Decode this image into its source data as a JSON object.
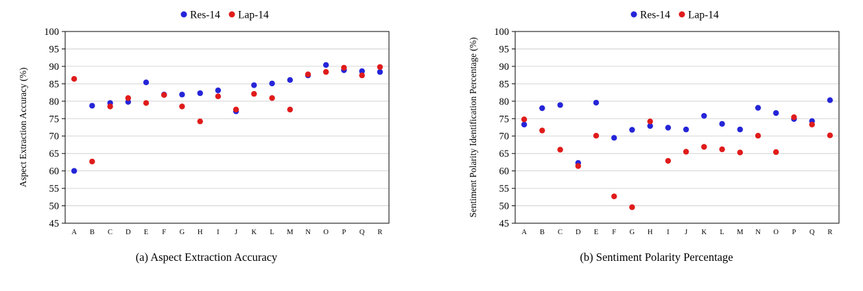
{
  "figure": {
    "captions": [
      "(a) Aspect Extraction Accuracy",
      "(b) Sentiment Polarity Percentage"
    ]
  },
  "chart_data": [
    {
      "type": "scatter",
      "title": "",
      "xlabel": "",
      "ylabel": "Aspect Extraction Accuracy (%)",
      "ylim": [
        45,
        100
      ],
      "ytick_step": 5,
      "grid": true,
      "legend_position": "top-center",
      "categories": [
        "A",
        "B",
        "C",
        "D",
        "E",
        "F",
        "G",
        "H",
        "I",
        "J",
        "K",
        "L",
        "M",
        "N",
        "O",
        "P",
        "Q",
        "R"
      ],
      "series": [
        {
          "name": "Res-14",
          "color": "#2525d8",
          "values": [
            60.0,
            78.7,
            79.5,
            79.8,
            85.4,
            81.9,
            81.9,
            82.3,
            83.1,
            77.1,
            84.6,
            85.1,
            86.1,
            87.4,
            90.4,
            88.9,
            88.6,
            88.4
          ]
        },
        {
          "name": "Lap-14",
          "color": "#e01b1b",
          "values": [
            86.4,
            62.7,
            78.5,
            80.9,
            79.5,
            81.8,
            78.5,
            74.2,
            81.4,
            77.6,
            82.1,
            80.9,
            77.6,
            87.7,
            88.4,
            89.6,
            87.4,
            89.8
          ]
        }
      ]
    },
    {
      "type": "scatter",
      "title": "",
      "xlabel": "",
      "ylabel": "Sentiment Polarity Identification Percentage (%)",
      "ylim": [
        45,
        100
      ],
      "ytick_step": 5,
      "grid": true,
      "legend_position": "top-center",
      "categories": [
        "A",
        "B",
        "C",
        "D",
        "E",
        "F",
        "G",
        "H",
        "I",
        "J",
        "K",
        "L",
        "M",
        "N",
        "O",
        "P",
        "Q",
        "R"
      ],
      "series": [
        {
          "name": "Res-14",
          "color": "#2525d8",
          "values": [
            73.3,
            78.0,
            78.9,
            62.3,
            79.6,
            69.5,
            71.8,
            72.9,
            72.4,
            71.9,
            75.8,
            73.5,
            71.9,
            78.1,
            76.6,
            74.9,
            74.3,
            80.3
          ]
        },
        {
          "name": "Lap-14",
          "color": "#e01b1b",
          "values": [
            74.8,
            71.6,
            66.1,
            61.4,
            70.1,
            52.7,
            49.6,
            74.2,
            62.9,
            65.5,
            66.9,
            66.2,
            65.3,
            70.1,
            65.4,
            75.4,
            73.3,
            70.2
          ]
        }
      ]
    }
  ]
}
